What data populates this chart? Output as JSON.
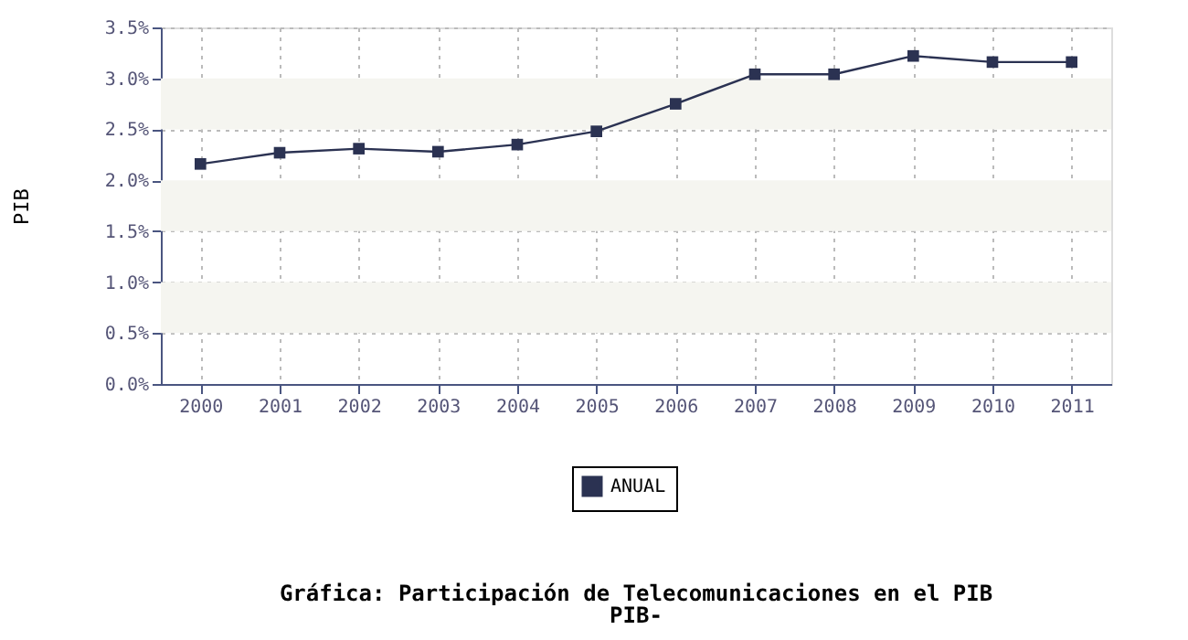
{
  "chart_data": {
    "type": "line",
    "title": "Gráfica: Participación de Telecomunicaciones en el PIB",
    "subtitle": "PIB-",
    "ylabel": "PIB",
    "categories": [
      "2000",
      "2001",
      "2002",
      "2003",
      "2004",
      "2005",
      "2006",
      "2007",
      "2008",
      "2009",
      "2010",
      "2011"
    ],
    "series": [
      {
        "name": "ANUAL",
        "color": "#2b3252",
        "values": [
          2.16,
          2.27,
          2.31,
          2.28,
          2.35,
          2.48,
          2.75,
          3.04,
          3.04,
          3.22,
          3.16,
          3.16
        ]
      }
    ],
    "ylim": [
      0,
      3.5
    ],
    "yticks": [
      {
        "value": 0,
        "label": "0.0%"
      },
      {
        "value": 0.5,
        "label": "0.5%"
      },
      {
        "value": 1,
        "label": "1.0%"
      },
      {
        "value": 1.5,
        "label": "1.5%"
      },
      {
        "value": 2,
        "label": "2.0%"
      },
      {
        "value": 2.5,
        "label": "2.5%"
      },
      {
        "value": 3,
        "label": "3.0%"
      },
      {
        "value": 3.5,
        "label": "3.5%"
      }
    ],
    "bands": [
      {
        "axis": "y",
        "from": 0.5,
        "to": 1.0,
        "color": "#f5f5f0"
      },
      {
        "axis": "y",
        "from": 1.5,
        "to": 2.0,
        "color": "#f5f5f0"
      },
      {
        "axis": "y",
        "from": 2.5,
        "to": 3.0,
        "color": "#f5f5f0"
      }
    ],
    "grid": true,
    "legend": "bottom",
    "marker": "square",
    "line_style": "solid"
  }
}
